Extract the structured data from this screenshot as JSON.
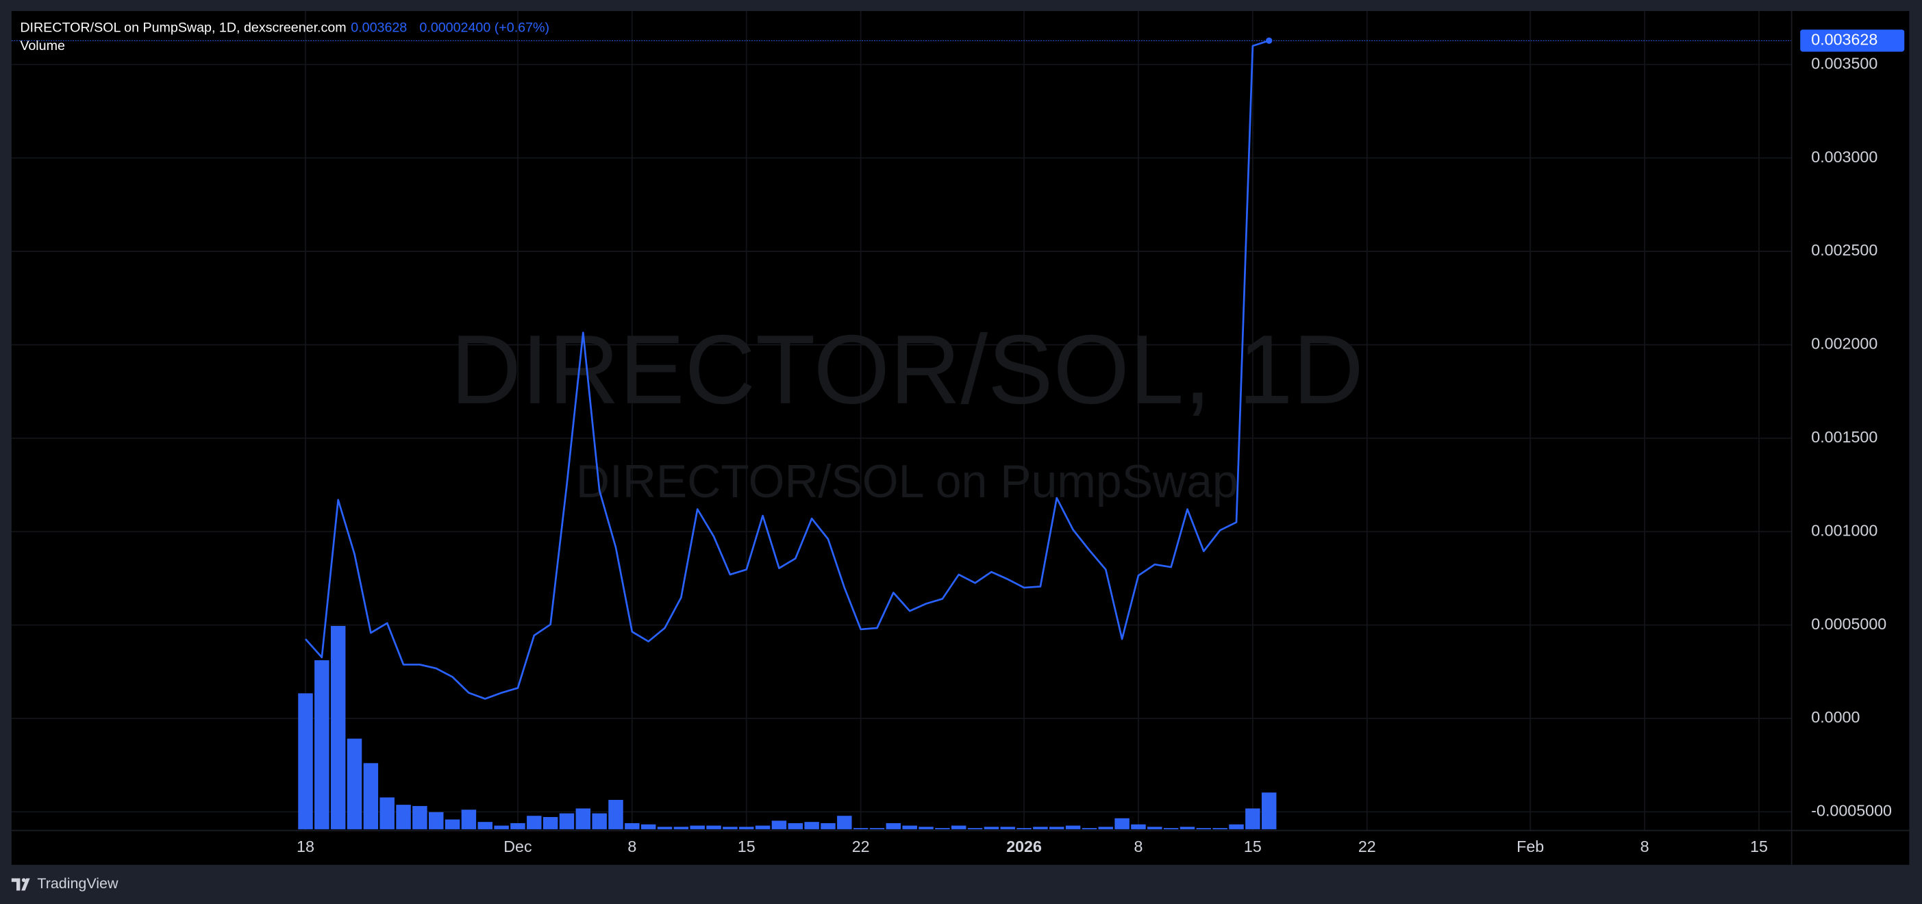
{
  "chart_data": {
    "type": "line",
    "title": "DIRECTOR/SOL on PumpSwap, 1D, dexscreener.com",
    "last_price": 0.003628,
    "change": "0.00002400 (+0.67%)",
    "watermark": {
      "title": "DIRECTOR/SOL, 1D",
      "subtitle": "DIRECTOR/SOL on PumpSwap"
    },
    "footer": "TradingView",
    "x": [
      "2025-11-18",
      "2025-11-19",
      "2025-11-20",
      "2025-11-21",
      "2025-11-22",
      "2025-11-23",
      "2025-11-24",
      "2025-11-25",
      "2025-11-26",
      "2025-11-27",
      "2025-11-28",
      "2025-11-29",
      "2025-11-30",
      "2025-12-01",
      "2025-12-02",
      "2025-12-03",
      "2025-12-04",
      "2025-12-05",
      "2025-12-06",
      "2025-12-07",
      "2025-12-08",
      "2025-12-09",
      "2025-12-10",
      "2025-12-11",
      "2025-12-12",
      "2025-12-13",
      "2025-12-14",
      "2025-12-15",
      "2025-12-16",
      "2025-12-17",
      "2025-12-18",
      "2025-12-19",
      "2025-12-20",
      "2025-12-21",
      "2025-12-22",
      "2025-12-23",
      "2025-12-24",
      "2025-12-25",
      "2025-12-26",
      "2025-12-27",
      "2025-12-28",
      "2025-12-29",
      "2025-12-30",
      "2025-12-31",
      "2026-01-01",
      "2026-01-02",
      "2026-01-03",
      "2026-01-04",
      "2026-01-05",
      "2026-01-06",
      "2026-01-07",
      "2026-01-08",
      "2026-01-09",
      "2026-01-10",
      "2026-01-11",
      "2026-01-12",
      "2026-01-13",
      "2026-01-14",
      "2026-01-15",
      "2026-01-16"
    ],
    "series": [
      {
        "name": "DIRECTOR/SOL",
        "type": "line",
        "color": "#2962ff",
        "values": [
          0.000425,
          0.000327,
          0.00117,
          0.00088,
          0.000458,
          0.00051,
          0.000288,
          0.000288,
          0.000268,
          0.000222,
          0.000137,
          0.000105,
          0.000137,
          0.000163,
          0.000444,
          0.000503,
          0.00125,
          0.002065,
          0.00122,
          0.000915,
          0.000464,
          0.000412,
          0.000484,
          0.000647,
          0.00112,
          0.000974,
          0.00077,
          0.000797,
          0.001085,
          0.000804,
          0.000856,
          0.00107,
          0.00096,
          0.0007,
          0.000477,
          0.000484,
          0.000673,
          0.000575,
          0.000614,
          0.00064,
          0.00077,
          0.000725,
          0.000784,
          0.000745,
          0.0007,
          0.000706,
          0.00118,
          0.00101,
          0.0009,
          0.000797,
          0.000425,
          0.000765,
          0.000824,
          0.00081,
          0.00112,
          0.000895,
          0.001007,
          0.00105,
          0.0036,
          0.003628
        ]
      },
      {
        "name": "Volume",
        "type": "bar",
        "color": "#2f63f4",
        "values": [
          111,
          138,
          166,
          74,
          54,
          26,
          20,
          19,
          14,
          8,
          16,
          6,
          3,
          5,
          11,
          10,
          13,
          17,
          13,
          24,
          5,
          4,
          2,
          2,
          3,
          3,
          2,
          2,
          3,
          7,
          5,
          6,
          5,
          11,
          1,
          1,
          5,
          3,
          2,
          1,
          3,
          1,
          2,
          2,
          1,
          2,
          2,
          3,
          1,
          2,
          9,
          4,
          2,
          1,
          2,
          1,
          1,
          4,
          17,
          30
        ]
      }
    ],
    "xlim": [
      "2025-10-31",
      "2026-02-17"
    ],
    "xticks": [
      {
        "value": "2025-11-18",
        "label": "18"
      },
      {
        "value": "2025-12-01",
        "label": "Dec"
      },
      {
        "value": "2025-12-08",
        "label": "8"
      },
      {
        "value": "2025-12-15",
        "label": "15"
      },
      {
        "value": "2025-12-22",
        "label": "22"
      },
      {
        "value": "2026-01-01",
        "label": "2026"
      },
      {
        "value": "2026-01-08",
        "label": "8"
      },
      {
        "value": "2026-01-15",
        "label": "15"
      },
      {
        "value": "2026-01-22",
        "label": "22"
      },
      {
        "value": "2026-02-01",
        "label": "Feb"
      },
      {
        "value": "2026-02-08",
        "label": "8"
      },
      {
        "value": "2026-02-15",
        "label": "15"
      }
    ],
    "ylim": [
      -0.0006,
      0.00378
    ],
    "yticks": [
      {
        "value": -0.0005,
        "label": "-0.0005000"
      },
      {
        "value": 0,
        "label": "0.0000"
      },
      {
        "value": 0.0005,
        "label": "0.0005000"
      },
      {
        "value": 0.001,
        "label": "0.001000"
      },
      {
        "value": 0.0015,
        "label": "0.001500"
      },
      {
        "value": 0.002,
        "label": "0.002000"
      },
      {
        "value": 0.0025,
        "label": "0.002500"
      },
      {
        "value": 0.003,
        "label": "0.003000"
      },
      {
        "value": 0.0035,
        "label": "0.003500"
      }
    ],
    "grid": true
  }
}
